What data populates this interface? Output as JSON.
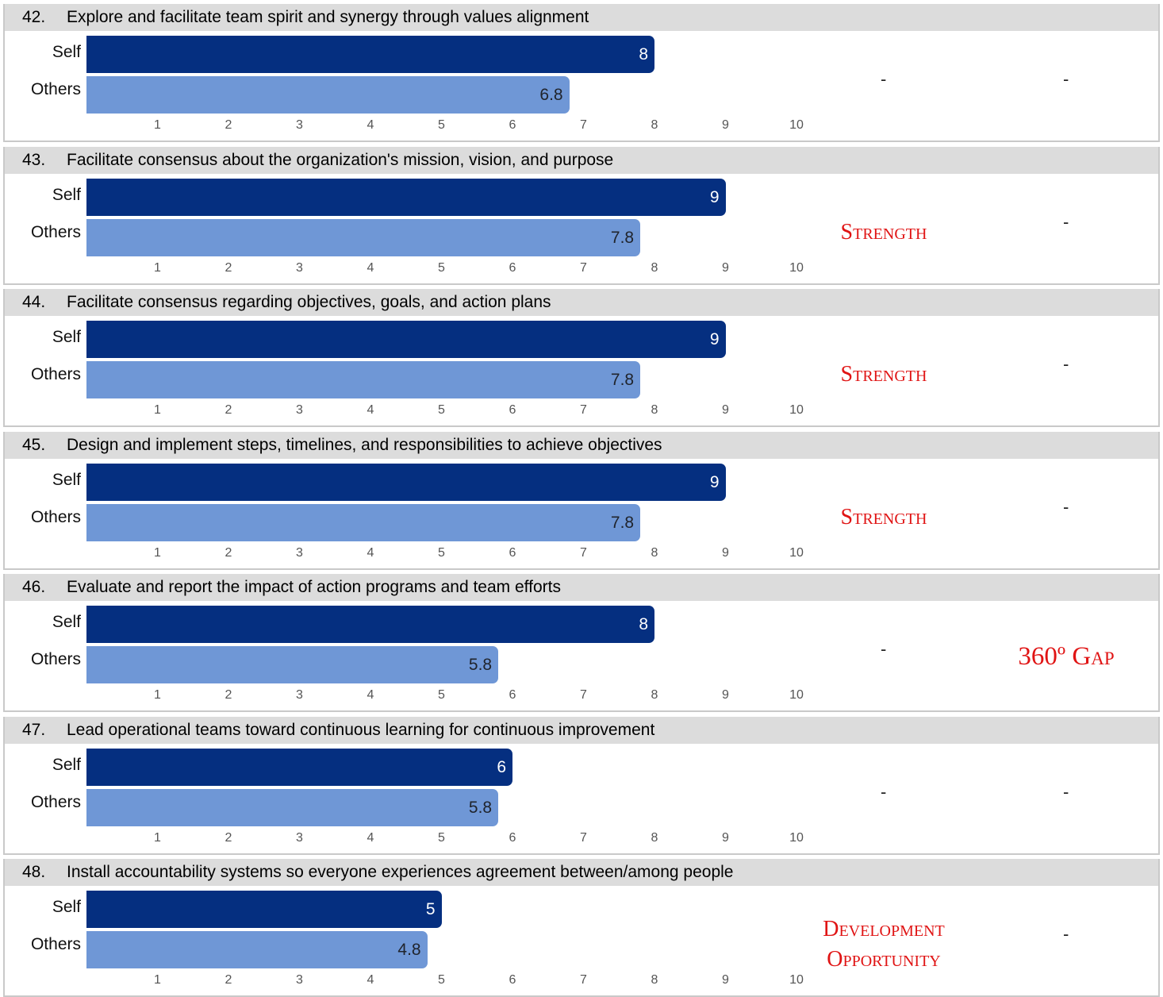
{
  "chart_data": {
    "type": "bar",
    "orientation": "horizontal",
    "x_ticks": [
      "1",
      "2",
      "3",
      "4",
      "5",
      "6",
      "7",
      "8",
      "9",
      "10"
    ],
    "xlim": [
      0,
      10
    ],
    "series_labels": [
      "Self",
      "Others"
    ],
    "colors": {
      "self": "#052f80",
      "others": "#6f97d6",
      "title_band": "#dcdcdc",
      "flag_text": "#e01414"
    },
    "items": [
      {
        "number": "42.",
        "title": "Explore and facilitate team spirit and synergy through values alignment",
        "self": 8,
        "self_label": "8",
        "others": 6.8,
        "others_label": "6.8",
        "col1": "-",
        "col2": "-"
      },
      {
        "number": "43.",
        "title": "Facilitate consensus about the organization's mission, vision, and purpose",
        "self": 9,
        "self_label": "9",
        "others": 7.8,
        "others_label": "7.8",
        "col1": "Strength",
        "col2": "-"
      },
      {
        "number": "44.",
        "title": "Facilitate consensus regarding objectives, goals, and action plans",
        "self": 9,
        "self_label": "9",
        "others": 7.8,
        "others_label": "7.8",
        "col1": "Strength",
        "col2": "-"
      },
      {
        "number": "45.",
        "title": "Design and implement steps, timelines, and responsibilities to achieve objectives",
        "self": 9,
        "self_label": "9",
        "others": 7.8,
        "others_label": "7.8",
        "col1": "Strength",
        "col2": "-"
      },
      {
        "number": "46.",
        "title": "Evaluate and report the impact of action programs and team efforts",
        "self": 8,
        "self_label": "8",
        "others": 5.8,
        "others_label": "5.8",
        "col1": "-",
        "col2": "360º Gap"
      },
      {
        "number": "47.",
        "title": "Lead operational teams toward continuous learning for continuous improvement",
        "self": 6,
        "self_label": "6",
        "others": 5.8,
        "others_label": "5.8",
        "col1": "-",
        "col2": "-"
      },
      {
        "number": "48.",
        "title": "Install accountability systems so everyone experiences agreement between/among people",
        "self": 5,
        "self_label": "5",
        "others": 4.8,
        "others_label": "4.8",
        "col1": "Development Opportunity",
        "col2": "-"
      }
    ]
  }
}
